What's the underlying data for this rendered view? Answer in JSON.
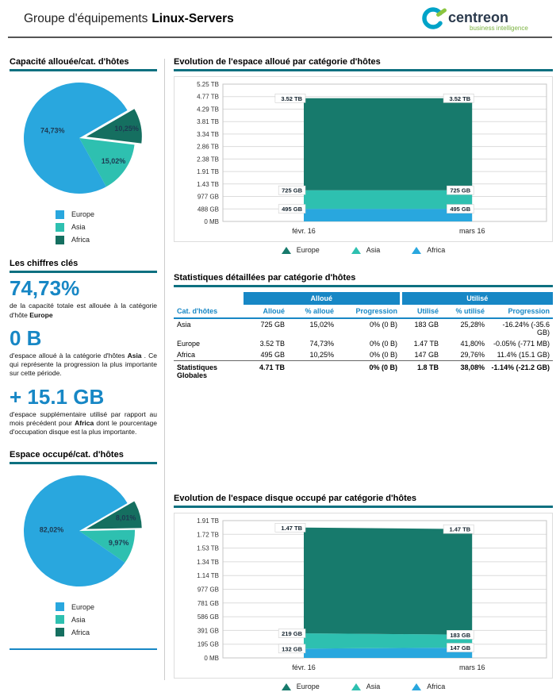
{
  "header": {
    "title_prefix": "Groupe d'équipements",
    "title_name": "Linux-Servers",
    "brand": "centreon",
    "brand_tagline": "business intelligence"
  },
  "key_figures": {
    "title": "Les chiffres clés",
    "items": [
      {
        "value": "74,73%",
        "parts": [
          {
            "text": "de la capacité totale est allouée à la catégorie d'hôte "
          },
          {
            "text": "Europe",
            "bold": true
          }
        ]
      },
      {
        "value": "0 B",
        "parts": [
          {
            "text": "d'espace alloué à la catégorie d'hôtes "
          },
          {
            "text": "Asia",
            "bold": true
          },
          {
            "text": " . Ce qui représente la progression la plus importante sur cette période."
          }
        ]
      },
      {
        "value": "+ 15.1 GB",
        "parts": [
          {
            "text": "d'espace supplémentaire utilisé par rapport au mois précédent pour "
          },
          {
            "text": "Africa",
            "bold": true
          },
          {
            "text": " dont le pourcentage d'occupation disque est la plus importante."
          }
        ]
      }
    ]
  },
  "stats_table": {
    "title": "Statistiques détaillées par catégorie d'hôtes",
    "group_headers": [
      "Alloué",
      "Utilisé"
    ],
    "columns": [
      "Cat. d'hôtes",
      "Alloué",
      "% alloué",
      "Progression",
      "Utilisé",
      "% utilisé",
      "Progression"
    ],
    "rows": [
      [
        "Asia",
        "725 GB",
        "15,02%",
        "0% (0 B)",
        "183 GB",
        "25,28%",
        "-16.24% (-35.6 GB)"
      ],
      [
        "Europe",
        "3.52 TB",
        "74,73%",
        "0% (0 B)",
        "1.47 TB",
        "41,80%",
        "-0.05% (-771 MB)"
      ],
      [
        "Africa",
        "495 GB",
        "10,25%",
        "0% (0 B)",
        "147 GB",
        "29,76%",
        "11.4% (15.1 GB)"
      ]
    ],
    "totals": [
      "Statistiques Globales",
      "4.71 TB",
      "",
      "0% (0 B)",
      "1.8 TB",
      "38,08%",
      "-1.14% (-21.2 GB)"
    ]
  },
  "chart_data": [
    {
      "type": "pie",
      "name": "allocated-capacity-by-host-category",
      "title": "Capacité allouée/cat. d'hôtes",
      "start_angle_deg": 60,
      "slices": [
        {
          "label": "Africa",
          "value_pct": 10.25,
          "display": "10,25%",
          "color": "#156f60",
          "exploded": true
        },
        {
          "label": "Asia",
          "value_pct": 15.02,
          "display": "15,02%",
          "color": "#2ec0b0",
          "exploded": false
        },
        {
          "label": "Europe",
          "value_pct": 74.73,
          "display": "74,73%",
          "color": "#29a7de",
          "exploded": false
        }
      ],
      "legend": [
        {
          "label": "Europe",
          "color": "#29a7de"
        },
        {
          "label": "Asia",
          "color": "#2ec0b0"
        },
        {
          "label": "Africa",
          "color": "#156f60"
        }
      ]
    },
    {
      "type": "area",
      "name": "allocated-space-evolution",
      "title": "Evolution de l'espace alloué par catégorie d'hôtes",
      "x": [
        "févr. 16",
        "mars 16"
      ],
      "y_ticks": [
        "0 MB",
        "488 GB",
        "977 GB",
        "1.43 TB",
        "1.91 TB",
        "2.38 TB",
        "2.86 TB",
        "3.34 TB",
        "3.81 TB",
        "4.29 TB",
        "4.77 TB",
        "5.25 TB"
      ],
      "y_max_gb": 5376,
      "series": [
        {
          "name": "Africa",
          "color": "#29a7de",
          "values_gb": [
            495,
            495
          ],
          "point_labels": [
            "495 GB",
            "495 GB"
          ]
        },
        {
          "name": "Asia",
          "color": "#2ec0b0",
          "values_gb": [
            725,
            725
          ],
          "point_labels": [
            "725 GB",
            "725 GB"
          ]
        },
        {
          "name": "Europe",
          "color": "#177a6c",
          "values_gb": [
            3604,
            3604
          ],
          "point_labels": [
            "3.52 TB",
            "3.52 TB"
          ]
        }
      ],
      "legend": [
        {
          "label": "Europe",
          "color": "#177a6c"
        },
        {
          "label": "Asia",
          "color": "#2ec0b0"
        },
        {
          "label": "Africa",
          "color": "#29a7de"
        }
      ]
    },
    {
      "type": "pie",
      "name": "occupied-space-by-host-category",
      "title": "Espace occupé/cat. d'hôtes",
      "start_angle_deg": 60,
      "slices": [
        {
          "label": "Africa",
          "value_pct": 8.01,
          "display": "8,01%",
          "color": "#156f60",
          "exploded": true
        },
        {
          "label": "Asia",
          "value_pct": 9.97,
          "display": "9,97%",
          "color": "#2ec0b0",
          "exploded": false
        },
        {
          "label": "Europe",
          "value_pct": 82.02,
          "display": "82,02%",
          "color": "#29a7de",
          "exploded": false
        }
      ],
      "legend": [
        {
          "label": "Europe",
          "color": "#29a7de"
        },
        {
          "label": "Asia",
          "color": "#2ec0b0"
        },
        {
          "label": "Africa",
          "color": "#156f60"
        }
      ]
    },
    {
      "type": "area",
      "name": "used-disk-space-evolution",
      "title": "Evolution de l'espace disque occupé par catégorie d'hôtes",
      "x": [
        "févr. 16",
        "mars 16"
      ],
      "y_ticks": [
        "0 MB",
        "195 GB",
        "391 GB",
        "586 GB",
        "781 GB",
        "977 GB",
        "1.14 TB",
        "1.34 TB",
        "1.53 TB",
        "1.72 TB",
        "1.91 TB"
      ],
      "y_max_gb": 1956,
      "series": [
        {
          "name": "Africa",
          "color": "#29a7de",
          "values_gb": [
            132,
            147
          ],
          "point_labels": [
            "132 GB",
            "147 GB"
          ]
        },
        {
          "name": "Asia",
          "color": "#2ec0b0",
          "values_gb": [
            219,
            183
          ],
          "point_labels": [
            "219 GB",
            "183 GB"
          ]
        },
        {
          "name": "Europe",
          "color": "#177a6c",
          "values_gb": [
            1505,
            1505
          ],
          "point_labels": [
            "1.47 TB",
            "1.47 TB"
          ]
        }
      ],
      "legend": [
        {
          "label": "Europe",
          "color": "#177a6c"
        },
        {
          "label": "Asia",
          "color": "#2ec0b0"
        },
        {
          "label": "Africa",
          "color": "#29a7de"
        }
      ]
    }
  ]
}
